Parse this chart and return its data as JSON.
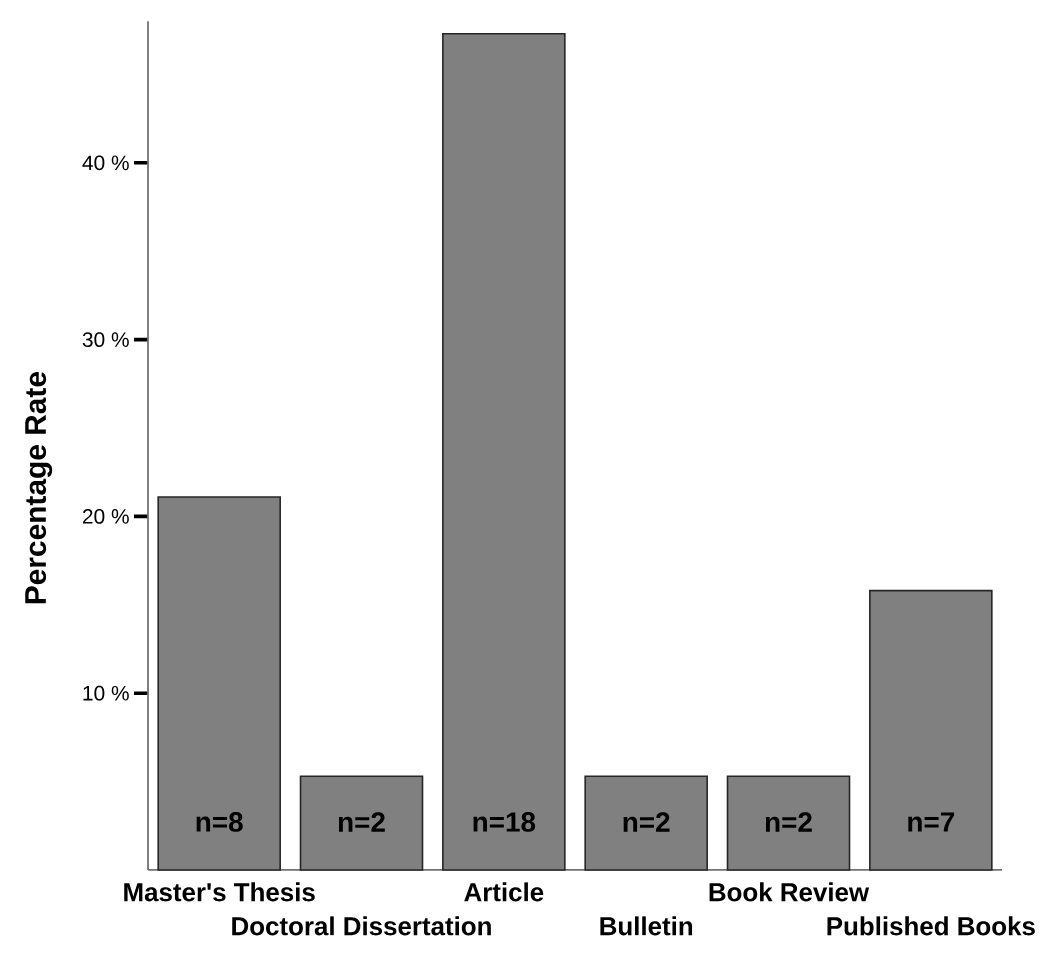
{
  "chart_data": {
    "type": "bar",
    "ylabel": "Percentage Rate",
    "categories": [
      "Master's Thesis",
      "Doctoral Dissertation",
      "Article",
      "Bulletin",
      "Book Review",
      "Published Books"
    ],
    "values": [
      21.1,
      5.3,
      47.3,
      5.3,
      5.3,
      15.8
    ],
    "annotations": [
      "n=8",
      "n=2",
      "n=18",
      "n=2",
      "n=2",
      "n=7"
    ],
    "color": "#808080",
    "ylim": [
      0,
      48
    ],
    "yticks": [
      {
        "value": 10,
        "label": "10 %"
      },
      {
        "value": 20,
        "label": "20 %"
      },
      {
        "value": 30,
        "label": "30 %"
      },
      {
        "value": 40,
        "label": "40 %"
      }
    ]
  }
}
